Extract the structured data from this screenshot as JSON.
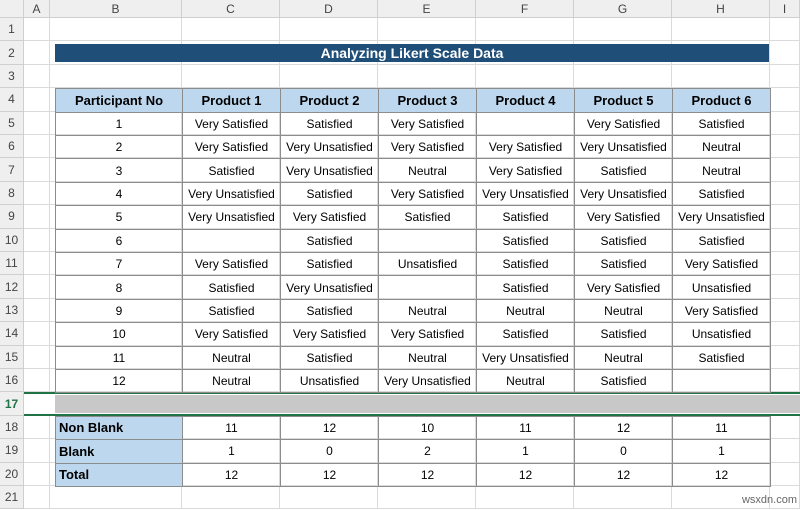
{
  "column_headers": [
    "A",
    "B",
    "C",
    "D",
    "E",
    "F",
    "G",
    "H",
    "I"
  ],
  "row_numbers": [
    1,
    2,
    3,
    4,
    5,
    6,
    7,
    8,
    9,
    10,
    11,
    12,
    13,
    14,
    15,
    16,
    17,
    18,
    19,
    20,
    21
  ],
  "title": "Analyzing Likert Scale Data",
  "table": {
    "header": [
      "Participant No",
      "Product 1",
      "Product 2",
      "Product 3",
      "Product 4",
      "Product 5",
      "Product 6"
    ],
    "rows": [
      [
        1,
        "Very Satisfied",
        "Satisfied",
        "Very Satisfied",
        null,
        "Very Satisfied",
        "Satisfied"
      ],
      [
        2,
        "Very Satisfied",
        "Very Unsatisfied",
        "Very Satisfied",
        "Very Satisfied",
        "Very Unsatisfied",
        "Neutral"
      ],
      [
        3,
        "Satisfied",
        "Very Unsatisfied",
        "Neutral",
        "Very Satisfied",
        "Satisfied",
        "Neutral"
      ],
      [
        4,
        "Very Unsatisfied",
        "Satisfied",
        "Very Satisfied",
        "Very Unsatisfied",
        "Very Unsatisfied",
        "Satisfied"
      ],
      [
        5,
        "Very Unsatisfied",
        "Very Satisfied",
        "Satisfied",
        "Satisfied",
        "Very Satisfied",
        "Very Unsatisfied"
      ],
      [
        6,
        null,
        "Satisfied",
        null,
        "Satisfied",
        "Satisfied",
        "Satisfied"
      ],
      [
        7,
        "Very Satisfied",
        "Satisfied",
        "Unsatisfied",
        "Satisfied",
        "Satisfied",
        "Very Satisfied"
      ],
      [
        8,
        "Satisfied",
        "Very Unsatisfied",
        null,
        "Satisfied",
        "Very Satisfied",
        "Unsatisfied"
      ],
      [
        9,
        "Satisfied",
        "Satisfied",
        "Neutral",
        "Neutral",
        "Neutral",
        "Very Satisfied"
      ],
      [
        10,
        "Very Satisfied",
        "Very Satisfied",
        "Very Satisfied",
        "Satisfied",
        "Satisfied",
        "Unsatisfied"
      ],
      [
        11,
        "Neutral",
        "Satisfied",
        "Neutral",
        "Very Unsatisfied",
        "Neutral",
        "Satisfied"
      ],
      [
        12,
        "Neutral",
        "Unsatisfied",
        "Very Unsatisfied",
        "Neutral",
        "Satisfied",
        null
      ]
    ]
  },
  "summary": [
    {
      "label": "Non Blank",
      "values": [
        11,
        12,
        10,
        11,
        12,
        11
      ]
    },
    {
      "label": "Blank",
      "values": [
        1,
        0,
        2,
        1,
        0,
        1
      ]
    },
    {
      "label": "Total",
      "values": [
        12,
        12,
        12,
        12,
        12,
        12
      ]
    }
  ],
  "watermark": "wsxdn.com"
}
